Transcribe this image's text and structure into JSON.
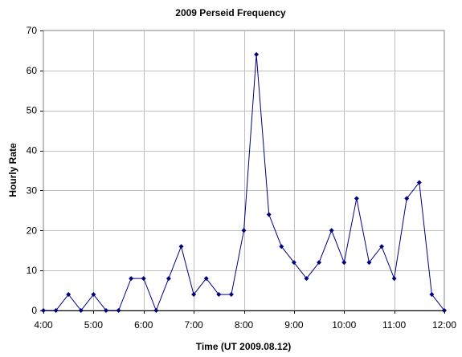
{
  "chart_data": {
    "type": "line",
    "title": "2009 Perseid Frequency",
    "xlabel": "Time (UT 2009.08.12)",
    "ylabel": "Hourly Rate",
    "x_ticks": [
      "4:00",
      "5:00",
      "6:00",
      "7:00",
      "8:00",
      "9:00",
      "10:00",
      "11:00",
      "12:00"
    ],
    "y_ticks": [
      0,
      10,
      20,
      30,
      40,
      50,
      60,
      70
    ],
    "xlim": [
      "4:00",
      "12:00"
    ],
    "ylim": [
      0,
      70
    ],
    "grid": true,
    "legend": "none",
    "color": "#000080",
    "series": [
      {
        "x": [
          "4:00",
          "4:15",
          "4:30",
          "4:45",
          "5:00",
          "5:15",
          "5:30",
          "5:45",
          "6:00",
          "6:15",
          "6:30",
          "6:45",
          "7:00",
          "7:15",
          "7:30",
          "7:45",
          "8:00",
          "8:15",
          "8:30",
          "8:45",
          "9:00",
          "9:15",
          "9:30",
          "9:45",
          "10:00",
          "10:15",
          "10:30",
          "10:45",
          "11:00",
          "11:15",
          "11:30",
          "11:45",
          "12:00"
        ],
        "values": [
          0,
          0,
          4,
          0,
          4,
          0,
          0,
          8,
          8,
          0,
          8,
          16,
          4,
          8,
          4,
          4,
          20,
          64,
          24,
          16,
          12,
          8,
          12,
          20,
          12,
          28,
          12,
          16,
          8,
          28,
          32,
          4,
          0
        ]
      }
    ]
  }
}
